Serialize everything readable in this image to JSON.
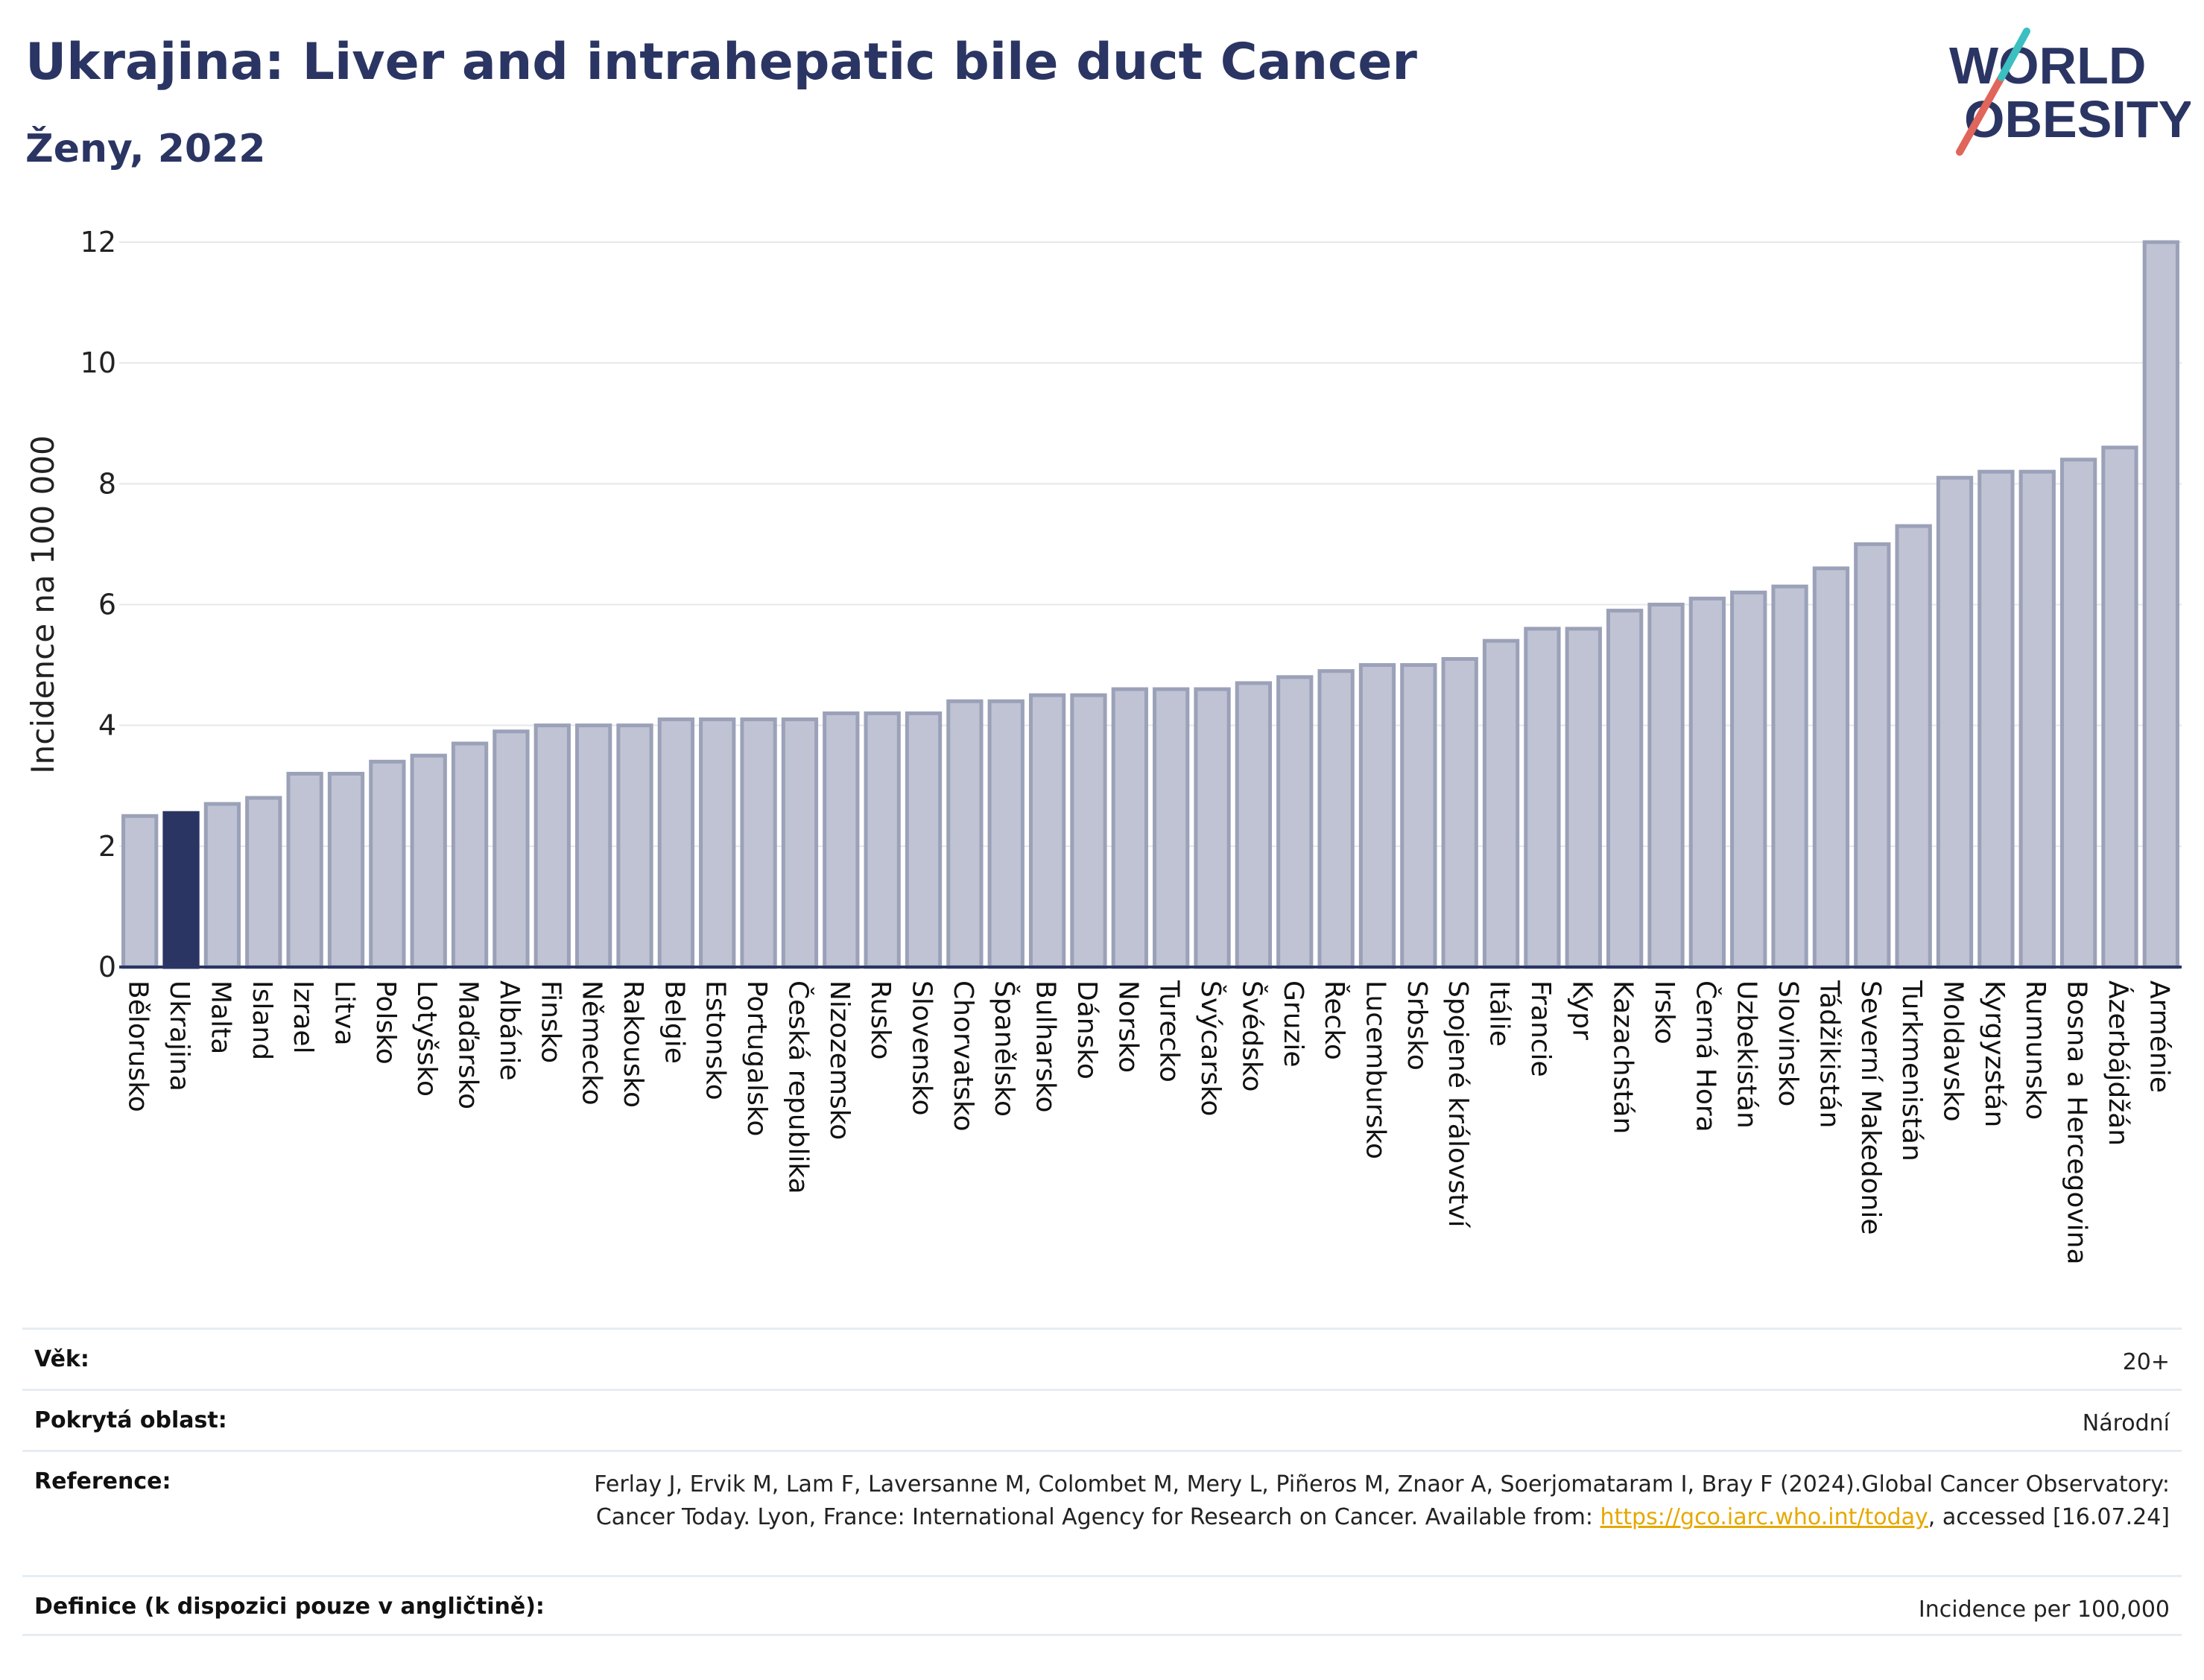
{
  "header": {
    "title": "Ukrajina: Liver and intrahepatic bile duct Cancer",
    "subtitle": "Ženy, 2022"
  },
  "logo": {
    "line1": "WORLD",
    "line2": "OBESITY",
    "color_text": "#2b3563",
    "color_slash_1": "#e0655a",
    "color_slash_2": "#3cbfc0"
  },
  "colors": {
    "bar": "#bfc3d3",
    "bar_stroke": "#9ba1b8",
    "highlight": "#2b3563",
    "grid": "#e5e7eb",
    "axis": "#2b3563"
  },
  "chart_data": {
    "type": "bar",
    "ylabel": "Incidence na 100 000",
    "ylim": [
      0,
      12
    ],
    "yticks": [
      0,
      2,
      4,
      6,
      8,
      10,
      12
    ],
    "highlight": "Ukrajina",
    "categories": [
      "Bělorusko",
      "Ukrajina",
      "Malta",
      "Island",
      "Izrael",
      "Litva",
      "Polsko",
      "Lotyšsko",
      "Maďarsko",
      "Albánie",
      "Finsko",
      "Německo",
      "Rakousko",
      "Belgie",
      "Estonsko",
      "Portugalsko",
      "Česká republika",
      "Nizozemsko",
      "Rusko",
      "Slovensko",
      "Chorvatsko",
      "Španělsko",
      "Bulharsko",
      "Dánsko",
      "Norsko",
      "Turecko",
      "Švýcarsko",
      "Švédsko",
      "Gruzie",
      "Řecko",
      "Lucembursko",
      "Srbsko",
      "Spojené království",
      "Itálie",
      "Francie",
      "Kypr",
      "Kazachstán",
      "Irsko",
      "Černá Hora",
      "Uzbekistán",
      "Slovinsko",
      "Tádžikistán",
      "Severní Makedonie",
      "Turkmenistán",
      "Moldavsko",
      "Kyrgyzstán",
      "Rumunsko",
      "Bosna a Hercegovina",
      "Ázerbájdžán",
      "Arménie"
    ],
    "values": [
      2.5,
      2.55,
      2.7,
      2.8,
      3.2,
      3.2,
      3.4,
      3.5,
      3.7,
      3.9,
      4.0,
      4.0,
      4.0,
      4.1,
      4.1,
      4.1,
      4.1,
      4.2,
      4.2,
      4.2,
      4.4,
      4.4,
      4.5,
      4.5,
      4.6,
      4.6,
      4.6,
      4.7,
      4.8,
      4.9,
      5.0,
      5.0,
      5.1,
      5.4,
      5.6,
      5.6,
      5.9,
      6.0,
      6.1,
      6.2,
      6.3,
      6.6,
      7.0,
      7.3,
      8.1,
      8.2,
      8.2,
      8.4,
      8.6,
      12.0
    ]
  },
  "meta": [
    {
      "label": "Věk:",
      "value": "20+"
    },
    {
      "label": "Pokrytá oblast:",
      "value": "Národní"
    },
    {
      "label": "Reference:",
      "value_pre": "Ferlay J, Ervik M, Lam F, Laversanne M, Colombet M, Mery L, Piñeros M, Znaor A, Soerjomataram I, Bray F (2024).Global Cancer Observatory: Cancer Today. Lyon, France: International Agency for Research on Cancer. Available from: ",
      "link": "https://gco.iarc.who.int/today",
      "value_post": ", accessed [16.07.24]"
    },
    {
      "label": "Definice (k dispozici pouze v angličtině):",
      "value": "Incidence per 100,000"
    }
  ]
}
